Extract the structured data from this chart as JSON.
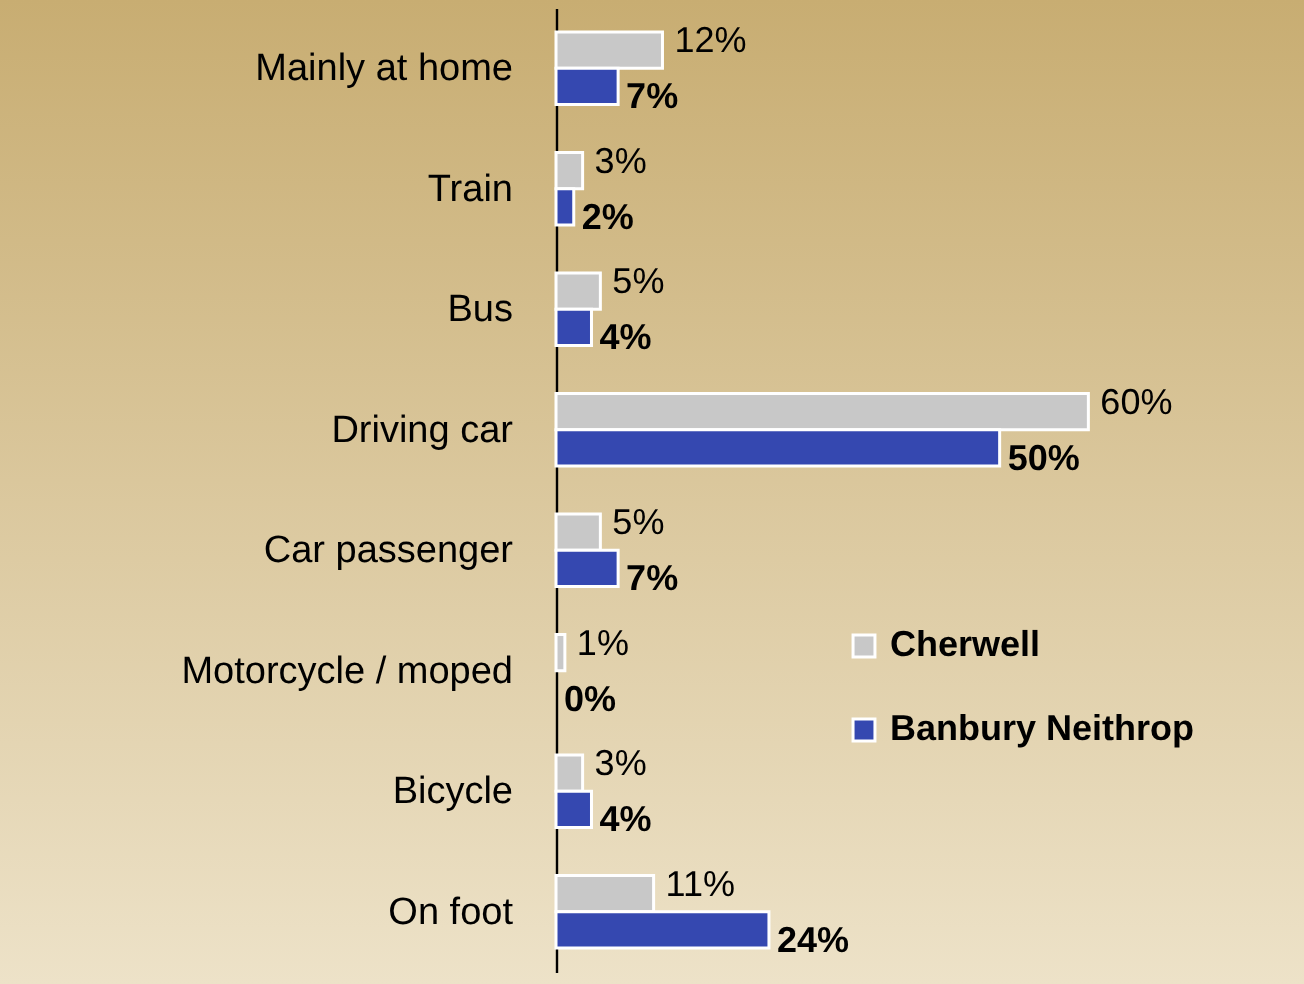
{
  "chart_data": {
    "type": "bar",
    "orientation": "horizontal",
    "legend": "right",
    "categories": [
      "Mainly at home",
      "Train",
      "Bus",
      "Driving car",
      "Car passenger",
      "Motorcycle / moped",
      "Bicycle",
      "On foot"
    ],
    "series": [
      {
        "name": "Cherwell",
        "color": "#c8c8c8",
        "values": [
          12,
          3,
          5,
          60,
          5,
          1,
          3,
          11
        ],
        "value_labels": [
          "12%",
          "3%",
          "5%",
          "60%",
          "5%",
          "1%",
          "3%",
          "11%"
        ]
      },
      {
        "name": "Banbury Neithrop",
        "color": "#3548b0",
        "values": [
          7,
          2,
          4,
          50,
          7,
          0,
          4,
          24
        ],
        "value_labels": [
          "7%",
          "2%",
          "4%",
          "50%",
          "7%",
          "0%",
          "4%",
          "24%"
        ]
      }
    ]
  }
}
